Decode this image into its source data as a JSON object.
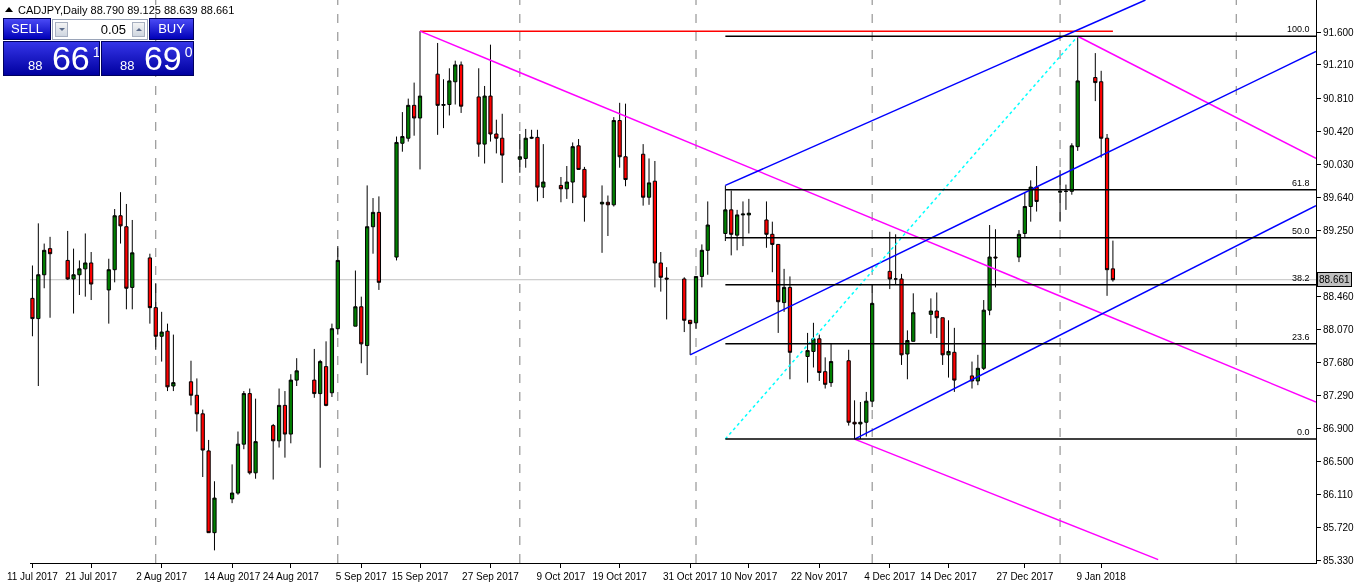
{
  "chart_data": {
    "type": "candlestick",
    "title": "CADJPY,Daily 88.790 89.125 88.639 88.661",
    "x": [
      "2017-07-11",
      "2017-07-12",
      "2017-07-13",
      "2017-07-14",
      "2017-07-17",
      "2017-07-18",
      "2017-07-19",
      "2017-07-20",
      "2017-07-21",
      "2017-07-24",
      "2017-07-25",
      "2017-07-26",
      "2017-07-27",
      "2017-07-28",
      "2017-07-31",
      "2017-08-01",
      "2017-08-02",
      "2017-08-03",
      "2017-08-04",
      "2017-08-07",
      "2017-08-08",
      "2017-08-09",
      "2017-08-10",
      "2017-08-11",
      "2017-08-14",
      "2017-08-15",
      "2017-08-16",
      "2017-08-17",
      "2017-08-18",
      "2017-08-21",
      "2017-08-22",
      "2017-08-23",
      "2017-08-24",
      "2017-08-25",
      "2017-08-28",
      "2017-08-29",
      "2017-08-30",
      "2017-08-31",
      "2017-09-01",
      "2017-09-04",
      "2017-09-05",
      "2017-09-06",
      "2017-09-07",
      "2017-09-08",
      "2017-09-11",
      "2017-09-12",
      "2017-09-13",
      "2017-09-14",
      "2017-09-15",
      "2017-09-18",
      "2017-09-19",
      "2017-09-20",
      "2017-09-21",
      "2017-09-22",
      "2017-09-25",
      "2017-09-26",
      "2017-09-27",
      "2017-09-28",
      "2017-09-29",
      "2017-10-02",
      "2017-10-03",
      "2017-10-04",
      "2017-10-05",
      "2017-10-06",
      "2017-10-09",
      "2017-10-10",
      "2017-10-11",
      "2017-10-12",
      "2017-10-13",
      "2017-10-16",
      "2017-10-17",
      "2017-10-18",
      "2017-10-19",
      "2017-10-20",
      "2017-10-23",
      "2017-10-24",
      "2017-10-25",
      "2017-10-26",
      "2017-10-27",
      "2017-10-30",
      "2017-10-31",
      "2017-11-01",
      "2017-11-02",
      "2017-11-03",
      "2017-11-06",
      "2017-11-07",
      "2017-11-08",
      "2017-11-09",
      "2017-11-10",
      "2017-11-13",
      "2017-11-14",
      "2017-11-15",
      "2017-11-16",
      "2017-11-17",
      "2017-11-20",
      "2017-11-21",
      "2017-11-22",
      "2017-11-23",
      "2017-11-24",
      "2017-11-27",
      "2017-11-28",
      "2017-11-29",
      "2017-11-30",
      "2017-12-01",
      "2017-12-04",
      "2017-12-05",
      "2017-12-06",
      "2017-12-07",
      "2017-12-08",
      "2017-12-11",
      "2017-12-12",
      "2017-12-13",
      "2017-12-14",
      "2017-12-15",
      "2017-12-18",
      "2017-12-19",
      "2017-12-20",
      "2017-12-21",
      "2017-12-22",
      "2017-12-26",
      "2017-12-27",
      "2017-12-28",
      "2017-12-29",
      "2018-01-02",
      "2018-01-03",
      "2018-01-04",
      "2018-01-05",
      "2018-01-08",
      "2018-01-09",
      "2018-01-10",
      "2018-01-11"
    ],
    "ohlc": [
      [
        88.44,
        88.83,
        87.99,
        88.2
      ],
      [
        88.2,
        89.33,
        87.4,
        88.72
      ],
      [
        88.72,
        89.09,
        88.56,
        89.01
      ],
      [
        89.03,
        89.17,
        88.21,
        88.97
      ],
      [
        88.89,
        89.24,
        88.66,
        88.67
      ],
      [
        88.67,
        89.03,
        88.26,
        88.72
      ],
      [
        88.72,
        88.89,
        88.48,
        88.79
      ],
      [
        88.79,
        89.21,
        88.46,
        88.86
      ],
      [
        88.86,
        88.99,
        88.42,
        88.61
      ],
      [
        88.54,
        88.91,
        88.14,
        88.78
      ],
      [
        88.78,
        89.5,
        88.63,
        89.42
      ],
      [
        89.42,
        89.7,
        89.09,
        89.3
      ],
      [
        89.29,
        89.56,
        88.31,
        88.56
      ],
      [
        88.57,
        89.37,
        88.31,
        88.98
      ],
      [
        88.92,
        88.97,
        88.14,
        88.33
      ],
      [
        88.33,
        88.62,
        87.83,
        87.99
      ],
      [
        87.99,
        88.28,
        87.69,
        88.04
      ],
      [
        88.05,
        88.14,
        87.34,
        87.39
      ],
      [
        87.4,
        88.01,
        87.34,
        87.44
      ],
      [
        87.45,
        87.7,
        87.17,
        87.29
      ],
      [
        87.29,
        87.49,
        86.86,
        87.07
      ],
      [
        87.07,
        87.12,
        86.32,
        86.64
      ],
      [
        86.63,
        86.76,
        85.66,
        85.66
      ],
      [
        85.66,
        86.27,
        85.45,
        86.07
      ],
      [
        86.06,
        86.47,
        86.01,
        86.13
      ],
      [
        86.13,
        86.86,
        86.11,
        86.71
      ],
      [
        86.71,
        87.34,
        86.65,
        87.31
      ],
      [
        87.31,
        87.37,
        86.35,
        86.37
      ],
      [
        86.37,
        87.25,
        86.3,
        86.74
      ],
      [
        86.93,
        86.95,
        86.29,
        86.75
      ],
      [
        86.75,
        87.37,
        86.67,
        87.17
      ],
      [
        87.17,
        87.34,
        86.55,
        86.83
      ],
      [
        86.83,
        87.54,
        86.72,
        87.47
      ],
      [
        87.47,
        87.73,
        87.4,
        87.58
      ],
      [
        87.47,
        87.84,
        87.26,
        87.31
      ],
      [
        87.31,
        87.71,
        86.43,
        87.69
      ],
      [
        87.63,
        87.93,
        87.16,
        87.17
      ],
      [
        87.32,
        88.14,
        87.27,
        88.08
      ],
      [
        88.08,
        89.06,
        88.01,
        88.89
      ],
      [
        88.11,
        88.77,
        88.11,
        88.34
      ],
      [
        88.34,
        88.46,
        87.67,
        87.9
      ],
      [
        87.88,
        89.78,
        87.53,
        89.29
      ],
      [
        89.29,
        89.63,
        88.97,
        89.46
      ],
      [
        89.46,
        89.65,
        88.54,
        88.63
      ],
      [
        88.93,
        90.36,
        88.89,
        90.29
      ],
      [
        90.28,
        90.65,
        90.18,
        90.36
      ],
      [
        90.34,
        90.81,
        90.3,
        90.73
      ],
      [
        90.73,
        91.0,
        90.37,
        90.58
      ],
      [
        90.58,
        91.61,
        89.97,
        90.84
      ],
      [
        91.1,
        91.47,
        90.38,
        90.73
      ],
      [
        90.73,
        91.04,
        90.46,
        90.74
      ],
      [
        90.74,
        91.17,
        90.61,
        91.02
      ],
      [
        91.01,
        91.26,
        90.74,
        91.21
      ],
      [
        91.21,
        91.25,
        90.64,
        90.72
      ],
      [
        90.83,
        91.17,
        90.12,
        90.27
      ],
      [
        90.27,
        90.96,
        90.04,
        90.84
      ],
      [
        90.84,
        91.45,
        90.3,
        90.39
      ],
      [
        90.39,
        90.56,
        90.16,
        90.34
      ],
      [
        90.34,
        90.63,
        89.81,
        90.14
      ],
      [
        90.09,
        90.39,
        89.93,
        90.12
      ],
      [
        90.1,
        90.45,
        89.99,
        90.34
      ],
      [
        90.34,
        90.44,
        90.33,
        90.35
      ],
      [
        90.35,
        90.44,
        89.59,
        89.76
      ],
      [
        89.76,
        90.27,
        89.63,
        89.82
      ],
      [
        89.78,
        89.88,
        89.58,
        89.74
      ],
      [
        89.74,
        90.01,
        89.62,
        89.82
      ],
      [
        89.82,
        90.29,
        89.57,
        90.24
      ],
      [
        90.25,
        90.33,
        89.97,
        89.97
      ],
      [
        89.97,
        90.0,
        89.35,
        89.64
      ],
      [
        89.56,
        89.78,
        88.98,
        89.58
      ],
      [
        89.58,
        89.66,
        89.18,
        89.55
      ],
      [
        89.55,
        90.59,
        89.53,
        90.55
      ],
      [
        90.55,
        90.76,
        89.99,
        90.12
      ],
      [
        90.12,
        90.75,
        89.77,
        89.85
      ],
      [
        90.15,
        90.27,
        89.54,
        89.64
      ],
      [
        89.64,
        90.1,
        89.55,
        89.81
      ],
      [
        89.83,
        90.07,
        88.57,
        88.86
      ],
      [
        88.86,
        88.99,
        88.52,
        88.69
      ],
      [
        88.68,
        88.81,
        88.19,
        88.67
      ],
      [
        88.67,
        88.69,
        88.04,
        88.18
      ],
      [
        88.18,
        88.18,
        87.77,
        88.14
      ],
      [
        88.15,
        88.7,
        88.08,
        88.7
      ],
      [
        88.7,
        89.08,
        88.57,
        89.01
      ],
      [
        89.01,
        89.59,
        88.72,
        89.31
      ],
      [
        89.21,
        89.78,
        89.12,
        89.49
      ],
      [
        89.49,
        89.72,
        88.95,
        89.2
      ],
      [
        89.19,
        89.49,
        89.01,
        89.43
      ],
      [
        89.43,
        89.59,
        89.06,
        89.44
      ],
      [
        89.43,
        89.62,
        89.21,
        89.45
      ],
      [
        89.37,
        89.59,
        89.04,
        89.2
      ],
      [
        89.2,
        89.35,
        88.75,
        89.08
      ],
      [
        89.08,
        89.08,
        88.03,
        88.4
      ],
      [
        88.39,
        88.79,
        88.28,
        88.57
      ],
      [
        88.57,
        88.7,
        87.48,
        87.8
      ],
      [
        87.75,
        88.03,
        87.44,
        87.82
      ],
      [
        87.81,
        88.15,
        87.62,
        87.96
      ],
      [
        87.96,
        88.01,
        87.46,
        87.56
      ],
      [
        87.57,
        87.74,
        87.37,
        87.42
      ],
      [
        87.44,
        87.9,
        87.39,
        87.69
      ],
      [
        87.7,
        87.83,
        86.93,
        86.97
      ],
      [
        86.97,
        87.23,
        86.77,
        86.95
      ],
      [
        86.95,
        87.21,
        86.77,
        86.97
      ],
      [
        86.97,
        87.33,
        86.8,
        87.22
      ],
      [
        87.22,
        88.61,
        87.15,
        88.38
      ],
      [
        88.76,
        89.23,
        88.55,
        88.67
      ],
      [
        88.67,
        89.2,
        88.6,
        88.67
      ],
      [
        88.67,
        88.73,
        87.65,
        87.77
      ],
      [
        87.78,
        88.06,
        87.48,
        87.94
      ],
      [
        87.93,
        88.5,
        87.93,
        88.27
      ],
      [
        88.25,
        88.44,
        88.02,
        88.29
      ],
      [
        88.29,
        88.51,
        87.97,
        88.21
      ],
      [
        88.21,
        88.21,
        87.65,
        87.77
      ],
      [
        87.77,
        88.18,
        87.5,
        87.81
      ],
      [
        87.8,
        88.09,
        87.33,
        87.47
      ],
      [
        87.52,
        87.69,
        87.37,
        87.46
      ],
      [
        87.46,
        87.77,
        87.41,
        87.61
      ],
      [
        87.61,
        88.42,
        87.59,
        88.3
      ],
      [
        88.3,
        89.31,
        88.24,
        88.93
      ],
      [
        88.93,
        89.26,
        88.57,
        88.92
      ],
      [
        88.93,
        89.25,
        88.87,
        89.2
      ],
      [
        89.21,
        89.7,
        89.16,
        89.53
      ],
      [
        89.53,
        89.84,
        89.35,
        89.76
      ],
      [
        89.76,
        90.01,
        89.47,
        89.59
      ],
      [
        89.7,
        89.96,
        89.35,
        89.71
      ],
      [
        89.71,
        89.79,
        89.49,
        89.71
      ],
      [
        89.71,
        90.28,
        89.67,
        90.25
      ],
      [
        90.24,
        91.55,
        90.19,
        91.02
      ],
      [
        91.06,
        91.35,
        90.78,
        91.0
      ],
      [
        91.01,
        91.14,
        90.11,
        90.34
      ],
      [
        90.34,
        90.39,
        88.47,
        88.78
      ],
      [
        88.79,
        89.125,
        88.639,
        88.661
      ]
    ],
    "series": [
      {
        "type": "line",
        "color": "#ff0000",
        "x": [
          "2017-09-15",
          "2018-01-11"
        ],
        "values": [
          91.61,
          91.61
        ]
      },
      {
        "type": "line",
        "color": "#ff00ff",
        "x": [
          "2017-09-15",
          "2018-02-14T14:00"
        ],
        "values": [
          91.61,
          87.21
        ]
      },
      {
        "type": "line",
        "color": "#ff00ff",
        "x": [
          "2018-01-05",
          "2018-02-14T14:00"
        ],
        "values": [
          91.55,
          90.1
        ]
      },
      {
        "type": "line",
        "color": "#ff00ff",
        "x": [
          "2017-11-28",
          "2018-01-18T17:00"
        ],
        "values": [
          86.77,
          85.34
        ]
      },
      {
        "type": "line",
        "color": "#0000ff",
        "x": [
          "2017-10-31",
          "2018-02-14T14:00"
        ],
        "values": [
          87.77,
          91.37
        ]
      },
      {
        "type": "line",
        "color": "#0000ff",
        "x": [
          "2017-11-06",
          "2018-01-16T13:00"
        ],
        "values": [
          89.78,
          91.98
        ]
      },
      {
        "type": "line",
        "color": "#0000ff",
        "x": [
          "2017-11-28",
          "2018-02-14T14:00"
        ],
        "values": [
          86.77,
          89.54
        ]
      },
      {
        "type": "line",
        "color": "#00ffff",
        "line_style": "dotted",
        "x": [
          "2017-11-06",
          "2018-01-05"
        ],
        "values": [
          86.77,
          91.55
        ]
      },
      {
        "type": "line",
        "color": "#000000",
        "x": [
          "2017-11-06",
          "2018-02-14T14:00"
        ],
        "values": [
          91.55,
          91.55
        ]
      },
      {
        "type": "line",
        "color": "#000000",
        "x": [
          "2017-11-06",
          "2018-02-14T14:00"
        ],
        "values": [
          89.73,
          89.73
        ]
      },
      {
        "type": "line",
        "color": "#000000",
        "x": [
          "2017-11-06",
          "2018-02-14T14:00"
        ],
        "values": [
          89.16,
          89.16
        ]
      },
      {
        "type": "line",
        "color": "#000000",
        "x": [
          "2017-11-06",
          "2018-02-14T14:00"
        ],
        "values": [
          88.6,
          88.6
        ]
      },
      {
        "type": "line",
        "color": "#000000",
        "x": [
          "2017-11-06",
          "2018-02-14T14:00"
        ],
        "values": [
          87.9,
          87.9
        ]
      },
      {
        "type": "line",
        "color": "#000000",
        "x": [
          "2017-11-06",
          "2018-02-14T14:00"
        ],
        "values": [
          86.77,
          86.77
        ]
      }
    ],
    "xlim": [
      "2017-07-10T14:00",
      "2018-02-14T14:00"
    ],
    "ylim": [
      85.3,
      91.98
    ],
    "xticks": [
      {
        "value": "2017-07-11",
        "label": "11 Jul 2017"
      },
      {
        "value": "2017-07-21",
        "label": "21 Jul 2017"
      },
      {
        "value": "2017-08-02",
        "label": "2 Aug 2017"
      },
      {
        "value": "2017-08-14",
        "label": "14 Aug 2017"
      },
      {
        "value": "2017-08-24",
        "label": "24 Aug 2017"
      },
      {
        "value": "2017-09-05",
        "label": "5 Sep 2017"
      },
      {
        "value": "2017-09-15",
        "label": "15 Sep 2017"
      },
      {
        "value": "2017-09-27",
        "label": "27 Sep 2017"
      },
      {
        "value": "2017-10-09",
        "label": "9 Oct 2017"
      },
      {
        "value": "2017-10-19",
        "label": "19 Oct 2017"
      },
      {
        "value": "2017-10-31",
        "label": "31 Oct 2017"
      },
      {
        "value": "2017-11-10",
        "label": "10 Nov 2017"
      },
      {
        "value": "2017-11-22",
        "label": "22 Nov 2017"
      },
      {
        "value": "2017-12-04",
        "label": "4 Dec 2017"
      },
      {
        "value": "2017-12-14",
        "label": "14 Dec 2017"
      },
      {
        "value": "2017-12-27",
        "label": "27 Dec 2017"
      },
      {
        "value": "2018-01-09",
        "label": "9 Jan 2018"
      }
    ],
    "yticks": [
      {
        "value": 85.33,
        "label": "85.330"
      },
      {
        "value": 85.72,
        "label": "85.720"
      },
      {
        "value": 86.11,
        "label": "86.110"
      },
      {
        "value": 86.5,
        "label": "86.500"
      },
      {
        "value": 86.9,
        "label": "86.900"
      },
      {
        "value": 87.29,
        "label": "87.290"
      },
      {
        "value": 87.68,
        "label": "87.680"
      },
      {
        "value": 88.07,
        "label": "88.070"
      },
      {
        "value": 88.46,
        "label": "88.460"
      },
      {
        "value": 89.25,
        "label": "89.250"
      },
      {
        "value": 89.64,
        "label": "89.640"
      },
      {
        "value": 90.03,
        "label": "90.030"
      },
      {
        "value": 90.42,
        "label": "90.420"
      },
      {
        "value": 90.81,
        "label": "90.810"
      },
      {
        "value": 91.21,
        "label": "91.210"
      },
      {
        "value": 91.6,
        "label": "91.600"
      }
    ],
    "ref_lines": [
      {
        "axis": "y",
        "value": 88.661,
        "label": "88.661",
        "color": "#c0c0c0"
      },
      {
        "axis": "x",
        "value": "2017-08-01",
        "color": "#808080",
        "line_style": "dashed"
      },
      {
        "axis": "x",
        "value": "2017-09-01",
        "color": "#808080",
        "line_style": "dashed"
      },
      {
        "axis": "x",
        "value": "2017-10-02",
        "color": "#808080",
        "line_style": "dashed"
      },
      {
        "axis": "x",
        "value": "2017-11-01",
        "color": "#808080",
        "line_style": "dashed"
      },
      {
        "axis": "x",
        "value": "2017-12-01",
        "color": "#808080",
        "line_style": "dashed"
      },
      {
        "axis": "x",
        "value": "2018-01-02",
        "color": "#808080",
        "line_style": "dashed"
      },
      {
        "axis": "x",
        "value": "2018-02-01",
        "color": "#808080",
        "line_style": "dashed"
      }
    ],
    "annotations": [
      "SELL",
      "0.05",
      "BUY",
      "88 66$^{1}$",
      "88 69$^{0}$",
      {
        "text": "100.0",
        "x": "2018-02-14T14:00",
        "y": 91.55
      },
      {
        "text": "61.8",
        "x": "2018-02-14T14:00",
        "y": 89.73
      },
      {
        "text": "50.0",
        "x": "2018-02-14T14:00",
        "y": 89.16
      },
      {
        "text": "38.2",
        "x": "2018-02-14T14:00",
        "y": 88.6
      },
      {
        "text": "23.6",
        "x": "2018-02-14T14:00",
        "y": 87.9
      },
      {
        "text": "0.0",
        "x": "2018-02-14T14:00",
        "y": 86.77
      }
    ]
  }
}
